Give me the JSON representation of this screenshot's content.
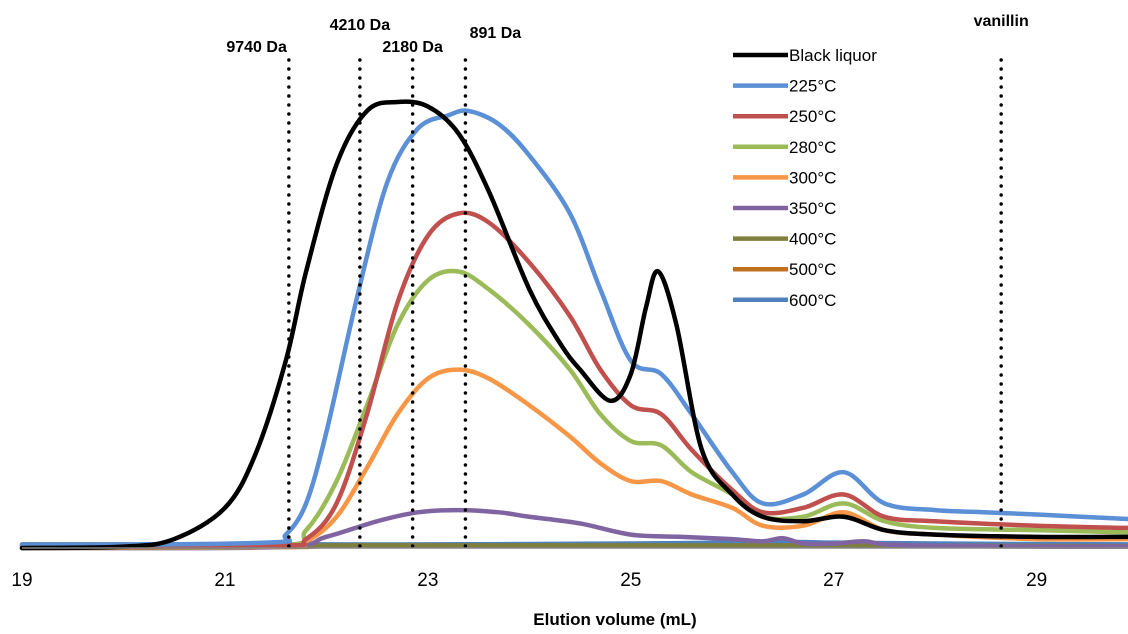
{
  "chart_data": {
    "type": "line",
    "title": "",
    "xlabel": "Elution volume (mL)",
    "ylabel": "",
    "xlim": [
      19,
      29.9
    ],
    "ylim": [
      0,
      1.0
    ],
    "x_ticks": [
      19,
      21,
      23,
      25,
      27,
      29
    ],
    "grid": false,
    "legend_position": "top-right",
    "markers": [
      {
        "label": "9740 Da",
        "x": 21.63
      },
      {
        "label": "4210 Da",
        "x": 22.33
      },
      {
        "label": "2180 Da",
        "x": 22.85
      },
      {
        "label": "891 Da",
        "x": 23.37
      },
      {
        "label": "vanillin",
        "x": 28.65
      }
    ],
    "series": [
      {
        "name": "Black liquor",
        "color": "#000000",
        "x": [
          19,
          20,
          20.5,
          21,
          21.3,
          21.6,
          21.8,
          22.1,
          22.4,
          22.7,
          23.0,
          23.3,
          23.6,
          24.0,
          24.3,
          24.5,
          24.8,
          25.0,
          25.15,
          25.27,
          25.45,
          25.7,
          26.0,
          26.3,
          26.7,
          27.1,
          27.5,
          28.0,
          29.0,
          29.9
        ],
        "y": [
          0.0,
          0.003,
          0.02,
          0.09,
          0.21,
          0.42,
          0.62,
          0.86,
          0.98,
          1.0,
          0.99,
          0.93,
          0.8,
          0.58,
          0.46,
          0.4,
          0.33,
          0.39,
          0.54,
          0.62,
          0.5,
          0.22,
          0.12,
          0.07,
          0.06,
          0.07,
          0.04,
          0.03,
          0.025,
          0.025
        ]
      },
      {
        "name": "225°C",
        "color": "#5b8fd6",
        "x": [
          19,
          21.4,
          21.6,
          21.8,
          22.0,
          22.3,
          22.6,
          22.9,
          23.2,
          23.4,
          23.7,
          24.0,
          24.4,
          24.7,
          25.0,
          25.3,
          25.6,
          26.0,
          26.3,
          26.7,
          27.1,
          27.5,
          28.0,
          28.5,
          29.0,
          29.9
        ],
        "y": [
          0.005,
          0.012,
          0.03,
          0.1,
          0.26,
          0.56,
          0.82,
          0.94,
          0.97,
          0.98,
          0.95,
          0.88,
          0.75,
          0.58,
          0.42,
          0.39,
          0.3,
          0.17,
          0.1,
          0.12,
          0.17,
          0.1,
          0.085,
          0.08,
          0.075,
          0.065
        ]
      },
      {
        "name": "250°C",
        "color": "#c0504d",
        "x": [
          19,
          21.5,
          21.8,
          22.1,
          22.4,
          22.7,
          23.0,
          23.3,
          23.6,
          24.0,
          24.4,
          24.7,
          25.0,
          25.3,
          25.6,
          26.0,
          26.3,
          26.7,
          27.1,
          27.5,
          28.0,
          29.0,
          29.9
        ],
        "y": [
          0.0,
          0.005,
          0.02,
          0.1,
          0.3,
          0.55,
          0.7,
          0.75,
          0.73,
          0.64,
          0.52,
          0.4,
          0.32,
          0.3,
          0.22,
          0.13,
          0.08,
          0.09,
          0.12,
          0.07,
          0.06,
          0.05,
          0.045
        ]
      },
      {
        "name": "280°C",
        "color": "#9bbb59",
        "x": [
          19,
          21.5,
          21.8,
          22.1,
          22.4,
          22.7,
          23.0,
          23.3,
          23.6,
          24.0,
          24.4,
          24.7,
          25.0,
          25.3,
          25.6,
          26.0,
          26.3,
          26.7,
          27.1,
          27.5,
          28.0,
          29.0,
          29.9
        ],
        "y": [
          0.0,
          0.005,
          0.04,
          0.15,
          0.32,
          0.5,
          0.6,
          0.62,
          0.58,
          0.5,
          0.4,
          0.3,
          0.24,
          0.23,
          0.17,
          0.12,
          0.07,
          0.07,
          0.1,
          0.06,
          0.045,
          0.04,
          0.035
        ]
      },
      {
        "name": "300°C",
        "color": "#f79646",
        "x": [
          19,
          21.5,
          21.8,
          22.1,
          22.4,
          22.7,
          23.0,
          23.3,
          23.6,
          24.0,
          24.4,
          24.7,
          25.0,
          25.3,
          25.6,
          26.0,
          26.3,
          26.7,
          27.1,
          27.5,
          28.0,
          29.0,
          29.9
        ],
        "y": [
          0.0,
          0.003,
          0.015,
          0.07,
          0.18,
          0.3,
          0.38,
          0.4,
          0.38,
          0.32,
          0.25,
          0.19,
          0.15,
          0.15,
          0.12,
          0.09,
          0.05,
          0.05,
          0.08,
          0.04,
          0.03,
          0.02,
          0.02
        ]
      },
      {
        "name": "350°C",
        "color": "#8064a2",
        "x": [
          19,
          21.5,
          22.0,
          22.5,
          22.9,
          23.3,
          23.7,
          24.0,
          24.5,
          25.0,
          25.5,
          26.0,
          26.3,
          26.5,
          26.7,
          27.0,
          27.3,
          27.5,
          28.0,
          29.0,
          29.9
        ],
        "y": [
          0.0,
          0.002,
          0.025,
          0.06,
          0.08,
          0.085,
          0.08,
          0.07,
          0.055,
          0.03,
          0.025,
          0.02,
          0.015,
          0.022,
          0.01,
          0.01,
          0.015,
          0.008,
          0.005,
          0.003,
          0.003
        ]
      },
      {
        "name": "400°C",
        "color": "#7f7f3f",
        "x": [
          19,
          21.5,
          22.0,
          23.0,
          24.0,
          25.0,
          26.0,
          27.0,
          28.0,
          29.9
        ],
        "y": [
          0.005,
          0.005,
          0.006,
          0.006,
          0.006,
          0.006,
          0.006,
          0.006,
          0.005,
          0.004
        ]
      },
      {
        "name": "500°C",
        "color": "#c0711f",
        "x": [
          19,
          21.5,
          22.0,
          23.0,
          24.0,
          25.0,
          26.0,
          27.0,
          28.0,
          29.9
        ],
        "y": [
          0.002,
          0.002,
          0.004,
          0.005,
          0.005,
          0.005,
          0.005,
          0.005,
          0.004,
          0.004
        ]
      },
      {
        "name": "600°C",
        "color": "#4f81bd",
        "x": [
          19,
          21.5,
          22.0,
          23.0,
          24.0,
          25.0,
          26.0,
          26.5,
          27.0,
          28.0,
          29.9
        ],
        "y": [
          0.008,
          0.008,
          0.008,
          0.008,
          0.009,
          0.01,
          0.012,
          0.014,
          0.012,
          0.01,
          0.008
        ]
      }
    ]
  }
}
